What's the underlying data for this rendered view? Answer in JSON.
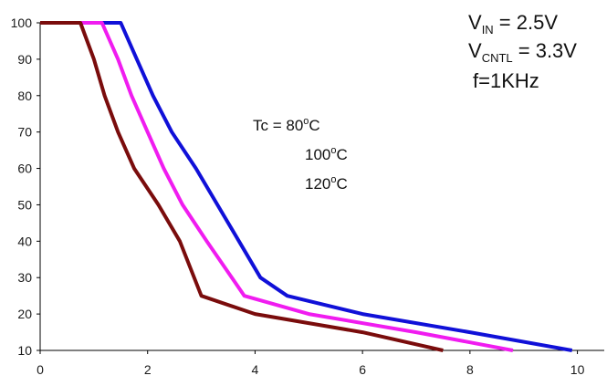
{
  "chart_data": {
    "type": "line",
    "title": "",
    "xlabel": "",
    "ylabel": "",
    "xlim": [
      0,
      10.5
    ],
    "ylim": [
      10,
      100
    ],
    "x_ticks": [
      0,
      2,
      4,
      6,
      8,
      10
    ],
    "y_ticks": [
      10,
      20,
      30,
      40,
      50,
      60,
      70,
      80,
      90,
      100
    ],
    "grid": false,
    "annotations": {
      "vin": {
        "main": "V",
        "sub": "IN",
        "rest": " = 2.5V"
      },
      "vcntl": {
        "main": "V",
        "sub": "CNTL",
        "rest": " = 3.3V"
      },
      "freq": "f=1KHz",
      "tc_prefix": "Tc = ",
      "temps": [
        {
          "value": "80",
          "sup": "o",
          "unit": "C"
        },
        {
          "value": "100",
          "sup": "o",
          "unit": "C"
        },
        {
          "value": "120",
          "sup": "o",
          "unit": "C"
        }
      ]
    },
    "series": [
      {
        "color": "#1010d8",
        "points": [
          [
            0,
            100
          ],
          [
            1.5,
            100
          ],
          [
            1.8,
            90
          ],
          [
            2.1,
            80
          ],
          [
            2.45,
            70
          ],
          [
            2.9,
            60
          ],
          [
            3.3,
            50
          ],
          [
            3.7,
            40
          ],
          [
            4.1,
            30
          ],
          [
            4.6,
            25
          ],
          [
            6.0,
            20
          ],
          [
            8.0,
            15
          ],
          [
            9.9,
            10
          ]
        ]
      },
      {
        "color": "#f01cf0",
        "points": [
          [
            0,
            100
          ],
          [
            1.15,
            100
          ],
          [
            1.45,
            90
          ],
          [
            1.7,
            80
          ],
          [
            2.0,
            70
          ],
          [
            2.3,
            60
          ],
          [
            2.65,
            50
          ],
          [
            3.1,
            40
          ],
          [
            3.8,
            25
          ],
          [
            5.0,
            20
          ],
          [
            7.0,
            15
          ],
          [
            8.8,
            10
          ]
        ]
      },
      {
        "color": "#7a0c0c",
        "points": [
          [
            0,
            100
          ],
          [
            0.75,
            100
          ],
          [
            1.0,
            90
          ],
          [
            1.2,
            80
          ],
          [
            1.45,
            70
          ],
          [
            1.75,
            60
          ],
          [
            2.2,
            50
          ],
          [
            2.6,
            40
          ],
          [
            3.0,
            25
          ],
          [
            4.0,
            20
          ],
          [
            6.0,
            15
          ],
          [
            7.5,
            10
          ]
        ]
      }
    ]
  }
}
